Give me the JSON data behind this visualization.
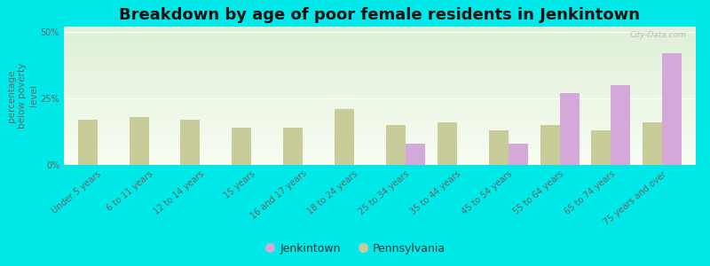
{
  "title": "Breakdown by age of poor female residents in Jenkintown",
  "ylabel": "percentage\nbelow poverty\nlevel",
  "categories": [
    "Under 5 years",
    "6 to 11 years",
    "12 to 14 years",
    "15 years",
    "16 and 17 years",
    "18 to 24 years",
    "25 to 34 years",
    "35 to 44 years",
    "45 to 54 years",
    "55 to 64 years",
    "65 to 74 years",
    "75 years and over"
  ],
  "jenkintown": [
    0,
    0,
    0,
    0,
    0,
    0,
    8,
    0,
    8,
    27,
    30,
    42
  ],
  "pennsylvania": [
    17,
    18,
    17,
    14,
    14,
    21,
    15,
    16,
    13,
    15,
    13,
    16
  ],
  "jenkintown_color": "#d4a8d8",
  "pennsylvania_color": "#c8cc99",
  "outer_bg": "#00e8e8",
  "ylim": [
    0,
    52
  ],
  "yticks": [
    0,
    25,
    50
  ],
  "ytick_labels": [
    "0%",
    "25%",
    "50%"
  ],
  "bar_width": 0.38,
  "title_fontsize": 13,
  "axis_label_fontsize": 7.5,
  "tick_fontsize": 7,
  "legend_fontsize": 9,
  "watermark": "City-Data.com"
}
